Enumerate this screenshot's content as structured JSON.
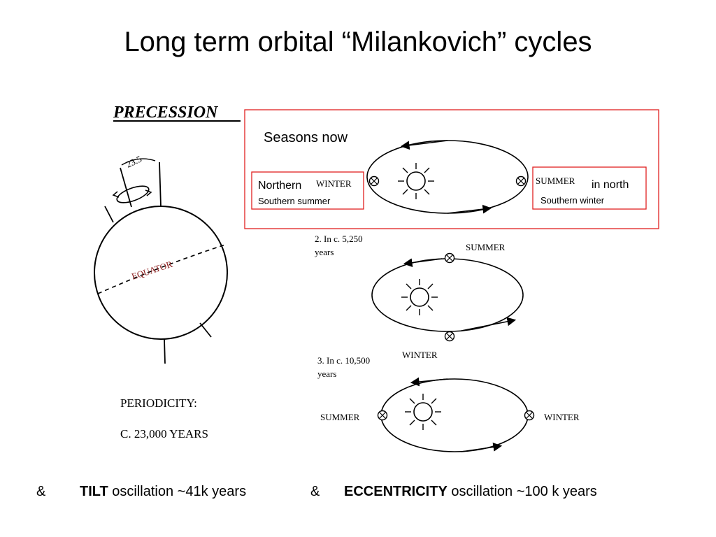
{
  "title": "Long term orbital “Milankovich” cycles",
  "precession": {
    "heading": "PRECESSION",
    "angle": "23.5",
    "equator": "EQUATOR",
    "periodicity_label": "PERIODICITY:",
    "periodicity_value": "C. 23,000 YEARS"
  },
  "seasons_now": {
    "heading": "Seasons now",
    "left_label": "Northern",
    "left_season": "WINTER",
    "left_sub": "Southern summer",
    "right_season": "SUMMER",
    "right_label": "in north",
    "right_sub": "Southern winter"
  },
  "stage2": {
    "caption_line1": "2. In c. 5,250",
    "caption_line2": "years",
    "top_season": "SUMMER",
    "bottom_season": "WINTER"
  },
  "stage3": {
    "caption_line1": "3. In c. 10,500",
    "caption_line2": "years",
    "left_season": "SUMMER",
    "right_season": "WINTER"
  },
  "footer": {
    "amp1": "&",
    "tilt": "TILT",
    "tilt_text": "oscillation ~41k years",
    "amp2": "&",
    "eccentricity": "ECCENTRICITY",
    "eccentricity_text": "oscillation ~100 k years"
  },
  "colors": {
    "box_border": "#e02020",
    "equator_text": "#8b1a1a"
  }
}
